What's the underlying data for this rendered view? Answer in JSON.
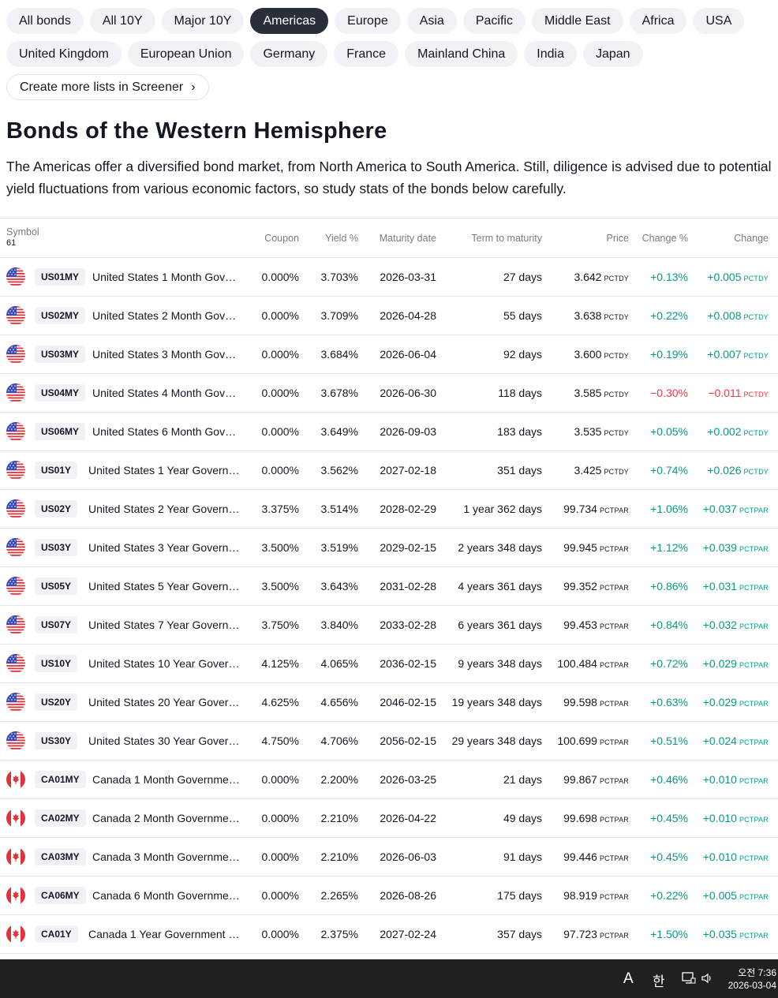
{
  "chips_row1": [
    "All bonds",
    "All 10Y",
    "Major 10Y",
    "Americas",
    "Europe",
    "Asia",
    "Pacific",
    "Middle East",
    "Africa",
    "USA"
  ],
  "chips_row2": [
    "United Kingdom",
    "European Union",
    "Germany",
    "France",
    "Mainland China",
    "India",
    "Japan"
  ],
  "active_chip": "Americas",
  "screener_link": "Create more lists in Screener",
  "title": "Bonds of the Western Hemisphere",
  "description": "The Americas offer a diversified bond market, from North America to South America. Still, diligence is advised due to potential yield fluctuations from various economic factors, so study stats of the bonds below carefully.",
  "table": {
    "headers": {
      "symbol": "Symbol",
      "count": "61",
      "coupon": "Coupon",
      "yield": "Yield %",
      "maturity": "Maturity date",
      "term": "Term to maturity",
      "price": "Price",
      "change_pct": "Change %",
      "change": "Change"
    },
    "rows": [
      {
        "flag": "us",
        "ticker": "US01MY",
        "name": "United States 1 Month Gove…",
        "coupon": "0.000%",
        "yield": "3.703%",
        "maturity": "2026-03-31",
        "term": "27 days",
        "price": "3.642",
        "price_unit": "PCTDY",
        "change_pct": "+0.13%",
        "change": "+0.005",
        "change_unit": "PCTDY",
        "dir": "pos"
      },
      {
        "flag": "us",
        "ticker": "US02MY",
        "name": "United States 2 Month Gove…",
        "coupon": "0.000%",
        "yield": "3.709%",
        "maturity": "2026-04-28",
        "term": "55 days",
        "price": "3.638",
        "price_unit": "PCTDY",
        "change_pct": "+0.22%",
        "change": "+0.008",
        "change_unit": "PCTDY",
        "dir": "pos"
      },
      {
        "flag": "us",
        "ticker": "US03MY",
        "name": "United States 3 Month Gove…",
        "coupon": "0.000%",
        "yield": "3.684%",
        "maturity": "2026-06-04",
        "term": "92 days",
        "price": "3.600",
        "price_unit": "PCTDY",
        "change_pct": "+0.19%",
        "change": "+0.007",
        "change_unit": "PCTDY",
        "dir": "pos"
      },
      {
        "flag": "us",
        "ticker": "US04MY",
        "name": "United States 4 Month Gove…",
        "coupon": "0.000%",
        "yield": "3.678%",
        "maturity": "2026-06-30",
        "term": "118 days",
        "price": "3.585",
        "price_unit": "PCTDY",
        "change_pct": "−0.30%",
        "change": "−0.011",
        "change_unit": "PCTDY",
        "dir": "neg"
      },
      {
        "flag": "us",
        "ticker": "US06MY",
        "name": "United States 6 Month Gove…",
        "coupon": "0.000%",
        "yield": "3.649%",
        "maturity": "2026-09-03",
        "term": "183 days",
        "price": "3.535",
        "price_unit": "PCTDY",
        "change_pct": "+0.05%",
        "change": "+0.002",
        "change_unit": "PCTDY",
        "dir": "pos"
      },
      {
        "flag": "us",
        "ticker": "US01Y",
        "name": "United States 1 Year Govern…",
        "coupon": "0.000%",
        "yield": "3.562%",
        "maturity": "2027-02-18",
        "term": "351 days",
        "price": "3.425",
        "price_unit": "PCTDY",
        "change_pct": "+0.74%",
        "change": "+0.026",
        "change_unit": "PCTDY",
        "dir": "pos"
      },
      {
        "flag": "us",
        "ticker": "US02Y",
        "name": "United States 2 Year Govern…",
        "coupon": "3.375%",
        "yield": "3.514%",
        "maturity": "2028-02-29",
        "term": "1 year 362 days",
        "price": "99.734",
        "price_unit": "PCTPAR",
        "change_pct": "+1.06%",
        "change": "+0.037",
        "change_unit": "PCTPAR",
        "dir": "pos"
      },
      {
        "flag": "us",
        "ticker": "US03Y",
        "name": "United States 3 Year Govern…",
        "coupon": "3.500%",
        "yield": "3.519%",
        "maturity": "2029-02-15",
        "term": "2 years 348 days",
        "price": "99.945",
        "price_unit": "PCTPAR",
        "change_pct": "+1.12%",
        "change": "+0.039",
        "change_unit": "PCTPAR",
        "dir": "pos"
      },
      {
        "flag": "us",
        "ticker": "US05Y",
        "name": "United States 5 Year Govern…",
        "coupon": "3.500%",
        "yield": "3.643%",
        "maturity": "2031-02-28",
        "term": "4 years 361 days",
        "price": "99.352",
        "price_unit": "PCTPAR",
        "change_pct": "+0.86%",
        "change": "+0.031",
        "change_unit": "PCTPAR",
        "dir": "pos"
      },
      {
        "flag": "us",
        "ticker": "US07Y",
        "name": "United States 7 Year Govern…",
        "coupon": "3.750%",
        "yield": "3.840%",
        "maturity": "2033-02-28",
        "term": "6 years 361 days",
        "price": "99.453",
        "price_unit": "PCTPAR",
        "change_pct": "+0.84%",
        "change": "+0.032",
        "change_unit": "PCTPAR",
        "dir": "pos"
      },
      {
        "flag": "us",
        "ticker": "US10Y",
        "name": "United States 10 Year Gover…",
        "coupon": "4.125%",
        "yield": "4.065%",
        "maturity": "2036-02-15",
        "term": "9 years 348 days",
        "price": "100.484",
        "price_unit": "PCTPAR",
        "change_pct": "+0.72%",
        "change": "+0.029",
        "change_unit": "PCTPAR",
        "dir": "pos"
      },
      {
        "flag": "us",
        "ticker": "US20Y",
        "name": "United States 20 Year Gover…",
        "coupon": "4.625%",
        "yield": "4.656%",
        "maturity": "2046-02-15",
        "term": "19 years 348 days",
        "price": "99.598",
        "price_unit": "PCTPAR",
        "change_pct": "+0.63%",
        "change": "+0.029",
        "change_unit": "PCTPAR",
        "dir": "pos"
      },
      {
        "flag": "us",
        "ticker": "US30Y",
        "name": "United States 30 Year Gover…",
        "coupon": "4.750%",
        "yield": "4.706%",
        "maturity": "2056-02-15",
        "term": "29 years 348 days",
        "price": "100.699",
        "price_unit": "PCTPAR",
        "change_pct": "+0.51%",
        "change": "+0.024",
        "change_unit": "PCTPAR",
        "dir": "pos"
      },
      {
        "flag": "ca",
        "ticker": "CA01MY",
        "name": "Canada 1 Month Governmen…",
        "coupon": "0.000%",
        "yield": "2.200%",
        "maturity": "2026-03-25",
        "term": "21 days",
        "price": "99.867",
        "price_unit": "PCTPAR",
        "change_pct": "+0.46%",
        "change": "+0.010",
        "change_unit": "PCTPAR",
        "dir": "pos"
      },
      {
        "flag": "ca",
        "ticker": "CA02MY",
        "name": "Canada 2 Month Governmen…",
        "coupon": "0.000%",
        "yield": "2.210%",
        "maturity": "2026-04-22",
        "term": "49 days",
        "price": "99.698",
        "price_unit": "PCTPAR",
        "change_pct": "+0.45%",
        "change": "+0.010",
        "change_unit": "PCTPAR",
        "dir": "pos"
      },
      {
        "flag": "ca",
        "ticker": "CA03MY",
        "name": "Canada 3 Month Governmen…",
        "coupon": "0.000%",
        "yield": "2.210%",
        "maturity": "2026-06-03",
        "term": "91 days",
        "price": "99.446",
        "price_unit": "PCTPAR",
        "change_pct": "+0.45%",
        "change": "+0.010",
        "change_unit": "PCTPAR",
        "dir": "pos"
      },
      {
        "flag": "ca",
        "ticker": "CA06MY",
        "name": "Canada 6 Month Governmen…",
        "coupon": "0.000%",
        "yield": "2.265%",
        "maturity": "2026-08-26",
        "term": "175 days",
        "price": "98.919",
        "price_unit": "PCTPAR",
        "change_pct": "+0.22%",
        "change": "+0.005",
        "change_unit": "PCTPAR",
        "dir": "pos"
      },
      {
        "flag": "ca",
        "ticker": "CA01Y",
        "name": "Canada 1 Year Government B…",
        "coupon": "0.000%",
        "yield": "2.375%",
        "maturity": "2027-02-24",
        "term": "357 days",
        "price": "97.723",
        "price_unit": "PCTPAR",
        "change_pct": "+1.50%",
        "change": "+0.035",
        "change_unit": "PCTPAR",
        "dir": "pos"
      }
    ]
  },
  "taskbar": {
    "ime_letter": "A",
    "ime_korean": "한",
    "time": "오전 7:36",
    "date": "2026-03-04"
  },
  "colors": {
    "positive": "#089981",
    "negative": "#f23645",
    "active_chip": "#2a2e39"
  }
}
